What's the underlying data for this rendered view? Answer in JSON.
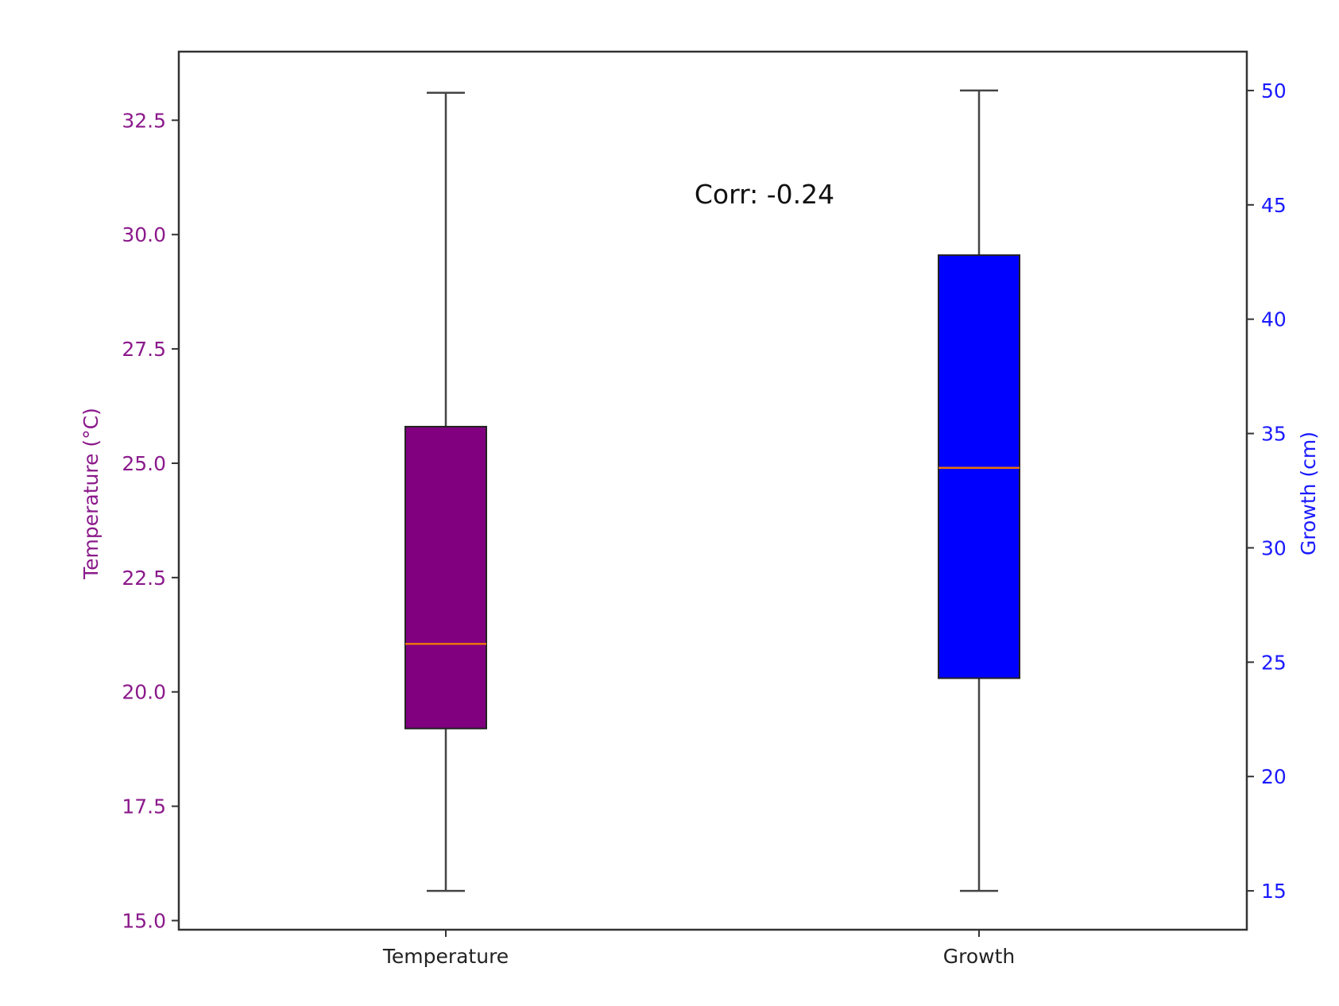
{
  "chart_data": {
    "type": "box",
    "categories": [
      "Temperature",
      "Growth"
    ],
    "annotation": "Corr: -0.24",
    "grid": false,
    "left_axis": {
      "label": "Temperature (°C)",
      "color": "#8b1a8b",
      "ylim": [
        14.8,
        34.0
      ],
      "ticks": [
        15.0,
        17.5,
        20.0,
        22.5,
        25.0,
        27.5,
        30.0,
        32.5
      ],
      "tick_labels": [
        "15.0",
        "17.5",
        "20.0",
        "22.5",
        "25.0",
        "27.5",
        "30.0",
        "32.5"
      ]
    },
    "right_axis": {
      "label": "Growth (cm)",
      "color": "#1a1aff",
      "ylim": [
        13.3,
        51.7
      ],
      "ticks": [
        15,
        20,
        25,
        30,
        35,
        40,
        45,
        50
      ],
      "tick_labels": [
        "15",
        "20",
        "25",
        "30",
        "35",
        "40",
        "45",
        "50"
      ]
    },
    "series": [
      {
        "category": "Temperature",
        "axis": "left",
        "fill": "#800080",
        "min": 15.65,
        "q1": 19.2,
        "median": 21.05,
        "q3": 25.8,
        "max": 33.1
      },
      {
        "category": "Growth",
        "axis": "right",
        "fill": "#0000ff",
        "min": 15.0,
        "q1": 24.3,
        "median": 33.5,
        "q3": 42.8,
        "max": 50.0
      }
    ],
    "median_color": "#e8730c"
  }
}
